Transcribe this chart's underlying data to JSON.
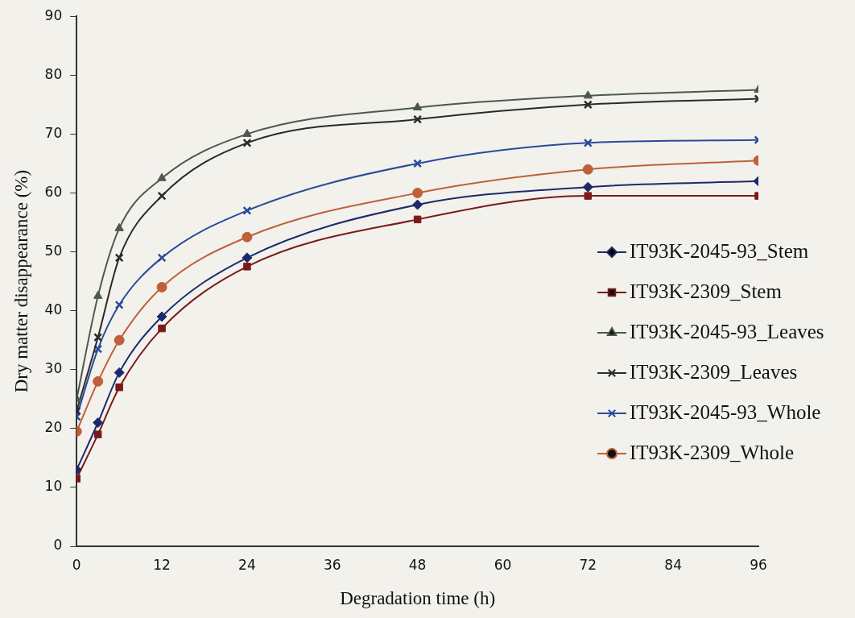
{
  "chart_data": {
    "type": "line",
    "xlabel": "Degradation time (h)",
    "ylabel": "Dry matter disappearance (%)",
    "x": [
      0,
      3,
      6,
      12,
      24,
      48,
      72,
      96
    ],
    "xlim": [
      0,
      96
    ],
    "xticks": [
      0,
      12,
      24,
      36,
      48,
      60,
      72,
      84,
      96
    ],
    "ylim": [
      0,
      90
    ],
    "yticks": [
      0,
      10,
      20,
      30,
      40,
      50,
      60,
      70,
      80,
      90
    ],
    "grid": false,
    "legend": "right",
    "series": [
      {
        "name": "IT93K-2045-93_Stem",
        "color": "#1c2a6b",
        "marker": "diamond",
        "values": [
          13,
          21,
          29.5,
          39,
          49,
          58,
          61,
          62
        ]
      },
      {
        "name": "IT93K-2309_Stem",
        "color": "#7a1a1a",
        "marker": "square",
        "values": [
          11.5,
          19,
          27,
          37,
          47.5,
          55.5,
          59.5,
          59.5
        ]
      },
      {
        "name": "IT93K-2045-93_Leaves",
        "color": "#4a5a4a",
        "marker": "triangle",
        "values": [
          25,
          42.5,
          54,
          62.5,
          70,
          74.5,
          76.5,
          77.5
        ]
      },
      {
        "name": "IT93K-2309_Leaves",
        "color": "#2a2a2a",
        "marker": "cross",
        "values": [
          23,
          35.5,
          49,
          59.5,
          68.5,
          72.5,
          75,
          76
        ]
      },
      {
        "name": "IT93K-2045-93_Whole",
        "color": "#2a4a9a",
        "marker": "cross",
        "values": [
          22,
          33.5,
          41,
          49,
          57,
          65,
          68.5,
          69
        ]
      },
      {
        "name": "IT93K-2309_Whole",
        "color": "#c0603a",
        "marker": "circle",
        "values": [
          19.5,
          28,
          35,
          44,
          52.5,
          60,
          64,
          65.5
        ]
      }
    ]
  }
}
